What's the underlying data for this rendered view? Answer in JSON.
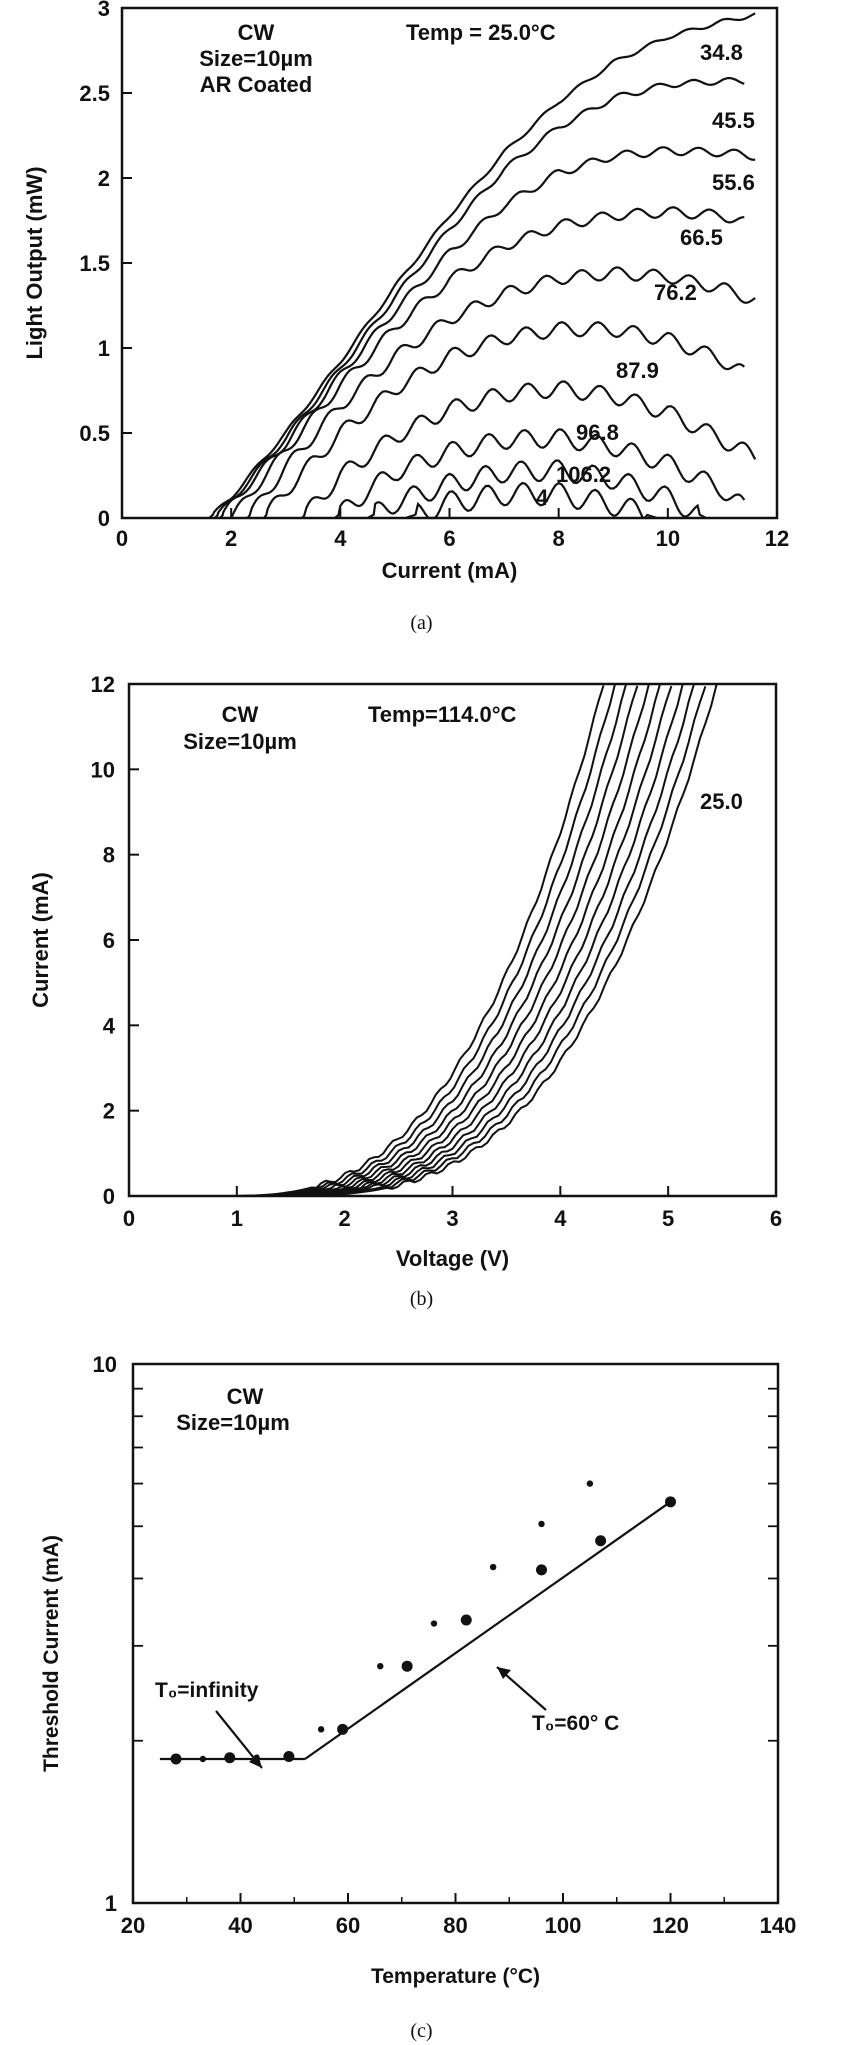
{
  "captions": {
    "a": "(a)",
    "b": "(b)",
    "c": "(c)"
  },
  "chart_data": [
    {
      "id": "a",
      "type": "line",
      "xlabel": "Current (mA)",
      "ylabel": "Light Output (mW)",
      "xlim": [
        0,
        12
      ],
      "ylim": [
        0,
        3
      ],
      "xticks": [
        0,
        2,
        4,
        6,
        8,
        10,
        12
      ],
      "yticks": [
        0,
        0.5,
        1,
        1.5,
        2,
        2.5,
        3
      ],
      "annotations": [
        "CW",
        "Size=10µm",
        "AR Coated",
        "Temp = 25.0°C"
      ],
      "series": [
        {
          "name": "25.0",
          "ith": 1.6,
          "x": [
            1.6,
            2,
            3,
            4,
            5,
            6,
            7,
            8,
            9,
            10,
            11,
            11.6
          ],
          "y": [
            0,
            0.12,
            0.5,
            0.92,
            1.36,
            1.78,
            2.15,
            2.45,
            2.68,
            2.83,
            2.92,
            2.96
          ]
        },
        {
          "name": "34.8",
          "ith": 1.7,
          "x": [
            1.7,
            2,
            3,
            4,
            5,
            6,
            7,
            8,
            9,
            10,
            11,
            11.4
          ],
          "y": [
            0,
            0.1,
            0.47,
            0.88,
            1.3,
            1.7,
            2.05,
            2.3,
            2.47,
            2.55,
            2.57,
            2.57
          ]
        },
        {
          "name": "45.5",
          "ith": 1.8,
          "x": [
            1.8,
            2,
            3,
            4,
            5,
            6,
            7,
            8,
            9,
            10,
            11,
            11.6
          ],
          "y": [
            0,
            0.08,
            0.44,
            0.84,
            1.22,
            1.56,
            1.84,
            2.03,
            2.13,
            2.16,
            2.15,
            2.13
          ]
        },
        {
          "name": "55.6",
          "ith": 2.0,
          "x": [
            2,
            3,
            4,
            5,
            6,
            7,
            8,
            9,
            10,
            11,
            11.4
          ],
          "y": [
            0,
            0.4,
            0.78,
            1.12,
            1.4,
            1.6,
            1.72,
            1.78,
            1.8,
            1.78,
            1.74
          ]
        },
        {
          "name": "66.5",
          "ith": 2.3,
          "x": [
            2.3,
            3,
            4,
            5,
            6,
            7,
            8,
            9,
            10,
            11,
            11.6
          ],
          "y": [
            0,
            0.3,
            0.66,
            0.95,
            1.17,
            1.32,
            1.41,
            1.44,
            1.42,
            1.35,
            1.28
          ]
        },
        {
          "name": "76.2",
          "ith": 2.6,
          "x": [
            2.6,
            3,
            4,
            5,
            6,
            7,
            8,
            9,
            10,
            11,
            11.4
          ],
          "y": [
            0,
            0.16,
            0.5,
            0.76,
            0.95,
            1.06,
            1.11,
            1.11,
            1.05,
            0.93,
            0.85
          ]
        },
        {
          "name": "87.9",
          "ith": 3.3,
          "x": [
            3.3,
            4,
            5,
            6,
            7,
            8,
            9,
            10,
            11,
            11.6
          ],
          "y": [
            0,
            0.25,
            0.48,
            0.64,
            0.73,
            0.76,
            0.72,
            0.62,
            0.46,
            0.36
          ]
        },
        {
          "name": "96.8",
          "ith": 3.9,
          "x": [
            3.9,
            4.5,
            5,
            6,
            7,
            8,
            9,
            10,
            11,
            11.4
          ],
          "y": [
            0,
            0.16,
            0.27,
            0.39,
            0.46,
            0.47,
            0.42,
            0.32,
            0.17,
            0.06
          ]
        },
        {
          "name": "106.2",
          "ith": 4.5,
          "x": [
            4.5,
            5,
            6,
            7,
            8,
            9,
            10,
            10.7
          ],
          "y": [
            0,
            0.09,
            0.2,
            0.27,
            0.28,
            0.23,
            0.12,
            0
          ]
        },
        {
          "name": "",
          "ith": 5.2,
          "x": [
            5.2,
            6,
            7,
            8,
            9,
            9.8
          ],
          "y": [
            0,
            0.09,
            0.14,
            0.14,
            0.08,
            0
          ]
        }
      ],
      "curve_labels": [
        "34.8",
        "45.5",
        "55.6",
        "66.5",
        "76.2",
        "87.9",
        "96.8",
        "106.2",
        "4"
      ]
    },
    {
      "id": "b",
      "type": "line",
      "xlabel": "Voltage (V)",
      "ylabel": "Current (mA)",
      "xlim": [
        0,
        6
      ],
      "ylim": [
        0,
        12
      ],
      "xticks": [
        0,
        1,
        2,
        3,
        4,
        5,
        6
      ],
      "yticks": [
        0,
        2,
        4,
        6,
        8,
        10,
        12
      ],
      "annotations": [
        "CW",
        "Size=10µm",
        "Temp=114.0°C",
        "25.0"
      ],
      "series_count": 11,
      "series": [
        {
          "name": "25.0",
          "x": [
            1.3,
            2,
            3,
            4,
            5,
            5.45
          ],
          "y": [
            0,
            0.8,
            2.4,
            4.9,
            9.0,
            11.8
          ]
        },
        {
          "name": "114.0",
          "x": [
            0.85,
            1.5,
            2.5,
            3.5,
            4.2,
            4.4
          ],
          "y": [
            0,
            0.7,
            2.8,
            6.3,
            10.5,
            12.0
          ]
        }
      ]
    },
    {
      "id": "c",
      "type": "scatter",
      "xlabel": "Temperature (°C)",
      "ylabel": "Threshold Current (mA)",
      "xlim": [
        20,
        140
      ],
      "ylim": [
        1,
        10
      ],
      "yscale": "log",
      "xticks": [
        20,
        40,
        60,
        80,
        100,
        120,
        140
      ],
      "yticks": [
        1,
        10
      ],
      "annotations": [
        "CW",
        "Size=10µm",
        "T₀=infinity",
        "T₀=60° C"
      ],
      "series": [
        {
          "name": "large",
          "x": [
            28,
            38,
            49,
            59,
            71,
            82,
            96,
            107,
            120
          ],
          "y": [
            1.85,
            1.86,
            1.87,
            2.1,
            2.75,
            3.35,
            4.15,
            4.7,
            5.55
          ]
        },
        {
          "name": "small",
          "x": [
            33,
            43,
            55,
            66,
            76,
            87,
            96,
            105
          ],
          "y": [
            1.85,
            1.86,
            2.1,
            2.75,
            3.3,
            4.2,
            5.05,
            6.0
          ]
        }
      ],
      "fit_lines": [
        {
          "label": "T₀=infinity",
          "x": [
            25,
            52
          ],
          "y": [
            1.85,
            1.85
          ]
        },
        {
          "label": "T₀=60° C",
          "x": [
            52,
            120
          ],
          "y": [
            1.85,
            5.55
          ]
        }
      ]
    }
  ]
}
